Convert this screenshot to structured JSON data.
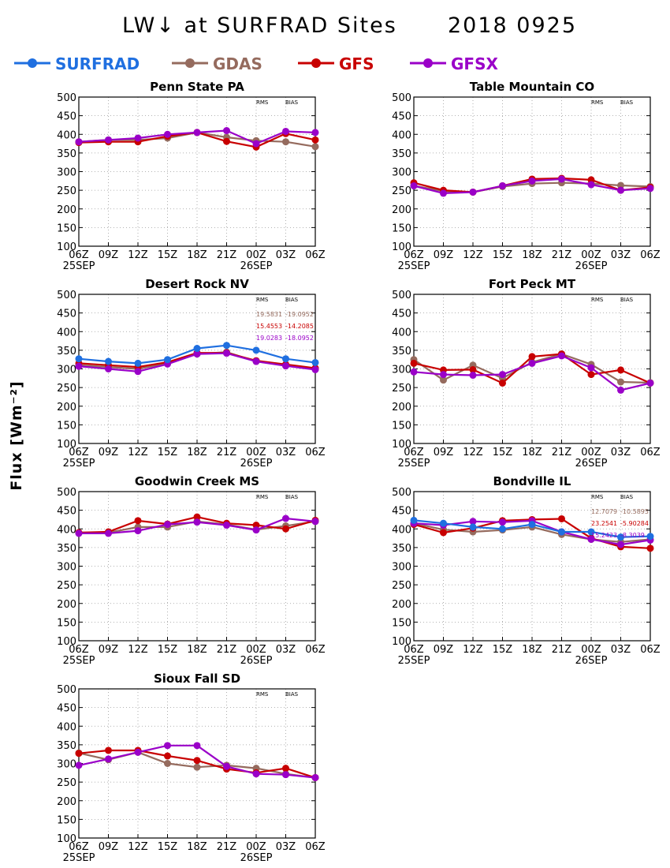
{
  "title": "LW↓ at SURFRAD Sites",
  "date": "2018 0925",
  "ylabel": "Flux [Wm⁻²]",
  "colors": {
    "SURFRAD": "#1f6fe0",
    "GDAS": "#956b5e",
    "GFS": "#c80000",
    "GFSX": "#9a00c8"
  },
  "legend": [
    "SURFRAD",
    "GDAS",
    "GFS",
    "GFSX"
  ],
  "stats_headers": {
    "rms": "RMS",
    "bias": "BIAS"
  },
  "chart_data": [
    {
      "type": "line",
      "title": "Penn State PA",
      "x": [
        "06Z",
        "09Z",
        "12Z",
        "15Z",
        "18Z",
        "21Z",
        "00Z",
        "03Z",
        "06Z"
      ],
      "date_labels": [
        {
          "index": 0,
          "text": "25SEP"
        },
        {
          "index": 6,
          "text": "26SEP"
        }
      ],
      "ylim": [
        100,
        500
      ],
      "yticks": [
        100,
        150,
        200,
        250,
        300,
        350,
        400,
        450,
        500
      ],
      "grid": true,
      "series": [
        {
          "name": "GDAS",
          "values": [
            380,
            385,
            385,
            390,
            405,
            392,
            383,
            380,
            367
          ]
        },
        {
          "name": "GFS",
          "values": [
            378,
            380,
            380,
            395,
            405,
            381,
            366,
            402,
            385
          ]
        },
        {
          "name": "GFSX",
          "values": [
            380,
            385,
            390,
            400,
            405,
            410,
            375,
            408,
            405
          ]
        }
      ],
      "stats": []
    },
    {
      "type": "line",
      "title": "Table Mountain CO",
      "x": [
        "06Z",
        "09Z",
        "12Z",
        "15Z",
        "18Z",
        "21Z",
        "00Z",
        "03Z",
        "06Z"
      ],
      "date_labels": [
        {
          "index": 0,
          "text": "25SEP"
        },
        {
          "index": 6,
          "text": "26SEP"
        }
      ],
      "ylim": [
        100,
        500
      ],
      "yticks": [
        100,
        150,
        200,
        250,
        300,
        350,
        400,
        450,
        500
      ],
      "grid": true,
      "series": [
        {
          "name": "GDAS",
          "values": [
            262,
            248,
            245,
            260,
            268,
            270,
            268,
            263,
            260
          ]
        },
        {
          "name": "GFS",
          "values": [
            270,
            250,
            245,
            262,
            280,
            282,
            278,
            250,
            258
          ]
        },
        {
          "name": "GFSX",
          "values": [
            262,
            242,
            245,
            262,
            275,
            280,
            265,
            250,
            255
          ]
        }
      ],
      "stats": []
    },
    {
      "type": "line",
      "title": "Desert Rock NV",
      "x": [
        "06Z",
        "09Z",
        "12Z",
        "15Z",
        "18Z",
        "21Z",
        "00Z",
        "03Z",
        "06Z"
      ],
      "date_labels": [
        {
          "index": 0,
          "text": "25SEP"
        },
        {
          "index": 6,
          "text": "26SEP"
        }
      ],
      "ylim": [
        100,
        500
      ],
      "yticks": [
        100,
        150,
        200,
        250,
        300,
        350,
        400,
        450,
        500
      ],
      "grid": true,
      "series": [
        {
          "name": "SURFRAD",
          "values": [
            327,
            320,
            315,
            325,
            355,
            363,
            350,
            327,
            317
          ]
        },
        {
          "name": "GDAS",
          "values": [
            310,
            305,
            300,
            315,
            340,
            345,
            320,
            310,
            300
          ]
        },
        {
          "name": "GFS",
          "values": [
            315,
            310,
            305,
            318,
            343,
            343,
            322,
            312,
            302
          ]
        },
        {
          "name": "GFSX",
          "values": [
            307,
            300,
            293,
            313,
            340,
            342,
            320,
            308,
            298
          ]
        }
      ],
      "stats": [
        {
          "name": "GDAS",
          "rms": "19.5831",
          "bias": "-19.0952"
        },
        {
          "name": "GFS",
          "rms": "15.4553",
          "bias": "-14.2085"
        },
        {
          "name": "GFSX",
          "rms": "19.0283",
          "bias": "-18.0952"
        }
      ]
    },
    {
      "type": "line",
      "title": "Fort Peck MT",
      "x": [
        "06Z",
        "09Z",
        "12Z",
        "15Z",
        "18Z",
        "21Z",
        "00Z",
        "03Z",
        "06Z"
      ],
      "date_labels": [
        {
          "index": 0,
          "text": "25SEP"
        },
        {
          "index": 6,
          "text": "26SEP"
        }
      ],
      "ylim": [
        100,
        500
      ],
      "yticks": [
        100,
        150,
        200,
        250,
        300,
        350,
        400,
        450,
        500
      ],
      "grid": true,
      "series": [
        {
          "name": "GDAS",
          "values": [
            325,
            270,
            310,
            275,
            318,
            340,
            312,
            265,
            263
          ]
        },
        {
          "name": "GFS",
          "values": [
            315,
            297,
            298,
            262,
            333,
            340,
            285,
            297,
            262
          ]
        },
        {
          "name": "GFSX",
          "values": [
            292,
            285,
            283,
            285,
            315,
            335,
            303,
            243,
            262
          ]
        }
      ],
      "stats": []
    },
    {
      "type": "line",
      "title": "Goodwin Creek MS",
      "x": [
        "06Z",
        "09Z",
        "12Z",
        "15Z",
        "18Z",
        "21Z",
        "00Z",
        "03Z",
        "06Z"
      ],
      "date_labels": [
        {
          "index": 0,
          "text": "25SEP"
        },
        {
          "index": 6,
          "text": "26SEP"
        }
      ],
      "ylim": [
        100,
        500
      ],
      "yticks": [
        100,
        150,
        200,
        250,
        300,
        350,
        400,
        450,
        500
      ],
      "grid": true,
      "series": [
        {
          "name": "GDAS",
          "values": [
            390,
            390,
            405,
            405,
            420,
            412,
            398,
            408,
            420
          ]
        },
        {
          "name": "GFS",
          "values": [
            390,
            392,
            422,
            413,
            432,
            415,
            410,
            400,
            423
          ]
        },
        {
          "name": "GFSX",
          "values": [
            388,
            388,
            395,
            412,
            418,
            410,
            397,
            428,
            420
          ]
        }
      ],
      "stats": []
    },
    {
      "type": "line",
      "title": "Bondville IL",
      "x": [
        "06Z",
        "09Z",
        "12Z",
        "15Z",
        "18Z",
        "21Z",
        "00Z",
        "03Z",
        "06Z"
      ],
      "date_labels": [
        {
          "index": 0,
          "text": "25SEP"
        },
        {
          "index": 6,
          "text": "26SEP"
        }
      ],
      "ylim": [
        100,
        500
      ],
      "yticks": [
        100,
        150,
        200,
        250,
        300,
        350,
        400,
        450,
        500
      ],
      "grid": true,
      "series": [
        {
          "name": "SURFRAD",
          "values": [
            423,
            415,
            405,
            400,
            412,
            392,
            392,
            378,
            380
          ]
        },
        {
          "name": "GDAS",
          "values": [
            415,
            398,
            392,
            397,
            405,
            385,
            372,
            365,
            372
          ]
        },
        {
          "name": "GFS",
          "values": [
            412,
            390,
            402,
            422,
            425,
            427,
            375,
            352,
            348
          ]
        },
        {
          "name": "GFSX",
          "values": [
            415,
            410,
            420,
            418,
            422,
            392,
            372,
            358,
            370
          ]
        }
      ],
      "stats": [
        {
          "name": "GDAS",
          "rms": "12.7079",
          "bias": "-10.5895"
        },
        {
          "name": "GFS",
          "rms": "23.2541",
          "bias": "-5.90284"
        },
        {
          "name": "GFSX",
          "rms": "15.2423",
          "bias": "-8.3039"
        }
      ]
    },
    {
      "type": "line",
      "title": "Sioux Fall SD",
      "x": [
        "06Z",
        "09Z",
        "12Z",
        "15Z",
        "18Z",
        "21Z",
        "00Z",
        "03Z",
        "06Z"
      ],
      "date_labels": [
        {
          "index": 0,
          "text": "25SEP"
        },
        {
          "index": 6,
          "text": "26SEP"
        }
      ],
      "ylim": [
        100,
        500
      ],
      "yticks": [
        100,
        150,
        200,
        250,
        300,
        350,
        400,
        450,
        500
      ],
      "grid": true,
      "series": [
        {
          "name": "GDAS",
          "values": [
            328,
            310,
            330,
            300,
            290,
            295,
            287,
            272,
            262
          ]
        },
        {
          "name": "GFS",
          "values": [
            327,
            335,
            335,
            320,
            308,
            285,
            275,
            287,
            262
          ]
        },
        {
          "name": "GFSX",
          "values": [
            295,
            312,
            330,
            348,
            348,
            292,
            272,
            270,
            262
          ]
        }
      ],
      "stats": []
    }
  ]
}
